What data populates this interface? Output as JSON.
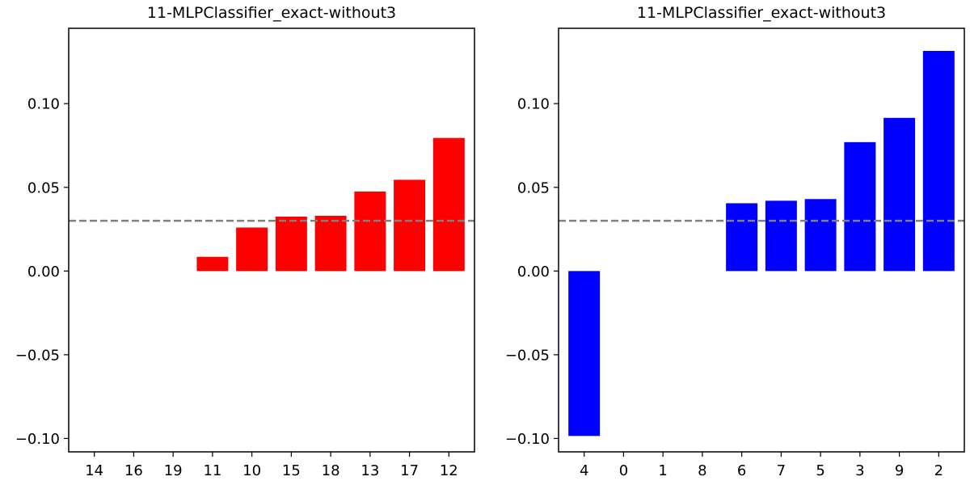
{
  "chart_data": [
    {
      "type": "bar",
      "title": "11-MLPClassifier_exact-without3",
      "categories": [
        "14",
        "16",
        "19",
        "11",
        "10",
        "15",
        "18",
        "13",
        "17",
        "12"
      ],
      "values": [
        0.0,
        0.0,
        0.0,
        0.0085,
        0.026,
        0.0325,
        0.033,
        0.0475,
        0.0545,
        0.0795
      ],
      "color": "#ff0000",
      "ylim": [
        -0.108,
        0.145
      ],
      "yticks": [
        "0.10",
        "0.05",
        "0.00",
        "−0.05",
        "−0.10"
      ],
      "ytick_values": [
        0.1,
        0.05,
        0.0,
        -0.05,
        -0.1
      ],
      "reference_line": 0.03,
      "reference_color": "#808080",
      "xlabel": "",
      "ylabel": ""
    },
    {
      "type": "bar",
      "title": "11-MLPClassifier_exact-without3",
      "categories": [
        "4",
        "0",
        "1",
        "8",
        "6",
        "7",
        "5",
        "3",
        "9",
        "2"
      ],
      "values": [
        -0.0985,
        0.0,
        0.0,
        0.0,
        0.0405,
        0.042,
        0.043,
        0.077,
        0.0915,
        0.1315
      ],
      "color": "#0000ff",
      "ylim": [
        -0.108,
        0.145
      ],
      "yticks": [
        "0.10",
        "0.05",
        "0.00",
        "−0.05",
        "−0.10"
      ],
      "ytick_values": [
        0.1,
        0.05,
        0.0,
        -0.05,
        -0.1
      ],
      "reference_line": 0.03,
      "reference_color": "#808080",
      "xlabel": "",
      "ylabel": ""
    }
  ]
}
